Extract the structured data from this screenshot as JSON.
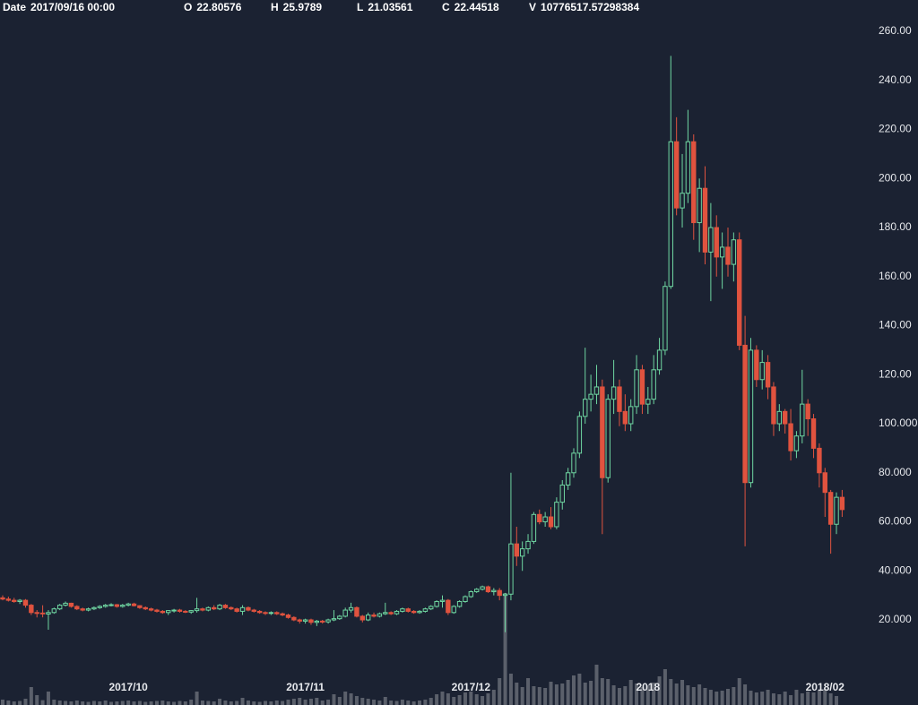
{
  "header": [
    {
      "label": "Date",
      "value": "2017/09/16 00:00"
    },
    {
      "label": "O",
      "value": 22.80576
    },
    {
      "label": "H",
      "value": 25.9789
    },
    {
      "label": "L",
      "value": 21.03561
    },
    {
      "label": "C",
      "value": 22.44518
    },
    {
      "label": "V",
      "value": "10776517.57298384"
    }
  ],
  "chart_data": {
    "type": "candlestick",
    "up_color": "#6fd6a1",
    "down_color": "#e0533f",
    "volume_color": "#5b606b",
    "ylim": [
      -14.7,
      272.8
    ],
    "yticks": [
      {
        "value": 260,
        "label": "260.00"
      },
      {
        "value": 240,
        "label": "240.00"
      },
      {
        "value": 220,
        "label": "220.00"
      },
      {
        "value": 200,
        "label": "200.00"
      },
      {
        "value": 180,
        "label": "180.00"
      },
      {
        "value": 160,
        "label": "160.00"
      },
      {
        "value": 140,
        "label": "140.00"
      },
      {
        "value": 120,
        "label": "120.00"
      },
      {
        "value": 100,
        "label": "100.000"
      },
      {
        "value": 80,
        "label": "80.000"
      },
      {
        "value": 60,
        "label": "60.000"
      },
      {
        "value": 40,
        "label": "40.000"
      },
      {
        "value": 20,
        "label": "20.000"
      }
    ],
    "categories": [
      null,
      null,
      null,
      null,
      null,
      null,
      null,
      null,
      null,
      null,
      null,
      null,
      null,
      null,
      null,
      null,
      null,
      null,
      null,
      null,
      null,
      null,
      "2017/10",
      null,
      null,
      null,
      null,
      null,
      null,
      null,
      null,
      null,
      null,
      null,
      null,
      null,
      null,
      null,
      null,
      null,
      null,
      null,
      null,
      null,
      null,
      null,
      null,
      null,
      null,
      null,
      null,
      null,
      null,
      "2017/11",
      null,
      null,
      null,
      null,
      null,
      null,
      null,
      null,
      null,
      null,
      null,
      null,
      null,
      null,
      null,
      null,
      null,
      null,
      null,
      null,
      null,
      null,
      null,
      null,
      null,
      null,
      null,
      null,
      "2017/12",
      null,
      null,
      null,
      null,
      null,
      null,
      null,
      null,
      null,
      null,
      null,
      null,
      null,
      null,
      null,
      null,
      null,
      null,
      null,
      null,
      null,
      null,
      null,
      null,
      null,
      null,
      null,
      null,
      null,
      null,
      "2018",
      null,
      null,
      null,
      null,
      null,
      null,
      null,
      null,
      null,
      null,
      null,
      null,
      null,
      null,
      null,
      null,
      null,
      null,
      null,
      null,
      null,
      null,
      null,
      null,
      null,
      null,
      null,
      null,
      null,
      null,
      "2018/02",
      null,
      null,
      null
    ],
    "values": [
      [
        29,
        30,
        28,
        28.5
      ],
      [
        28.5,
        29.5,
        27.5,
        28
      ],
      [
        28,
        29,
        27,
        27.5
      ],
      [
        27.5,
        28.5,
        26.5,
        28
      ],
      [
        28,
        28.5,
        25,
        26
      ],
      [
        26,
        26.5,
        22,
        23
      ],
      [
        23,
        24,
        21,
        22.8
      ],
      [
        22.81,
        25.98,
        21.04,
        22.45
      ],
      [
        22.4,
        24,
        16,
        23
      ],
      [
        23,
        25,
        22.5,
        24.5
      ],
      [
        24.5,
        26.5,
        24,
        26
      ],
      [
        26,
        27.5,
        25.5,
        26.8
      ],
      [
        26.8,
        27,
        25,
        25.5
      ],
      [
        25.5,
        26,
        24,
        24.5
      ],
      [
        24.5,
        25,
        23.5,
        24
      ],
      [
        24,
        25,
        23.5,
        24.5
      ],
      [
        24.5,
        25.5,
        24,
        25
      ],
      [
        25,
        26,
        24.5,
        25.5
      ],
      [
        25.5,
        26.5,
        25,
        26
      ],
      [
        26,
        26.8,
        25.5,
        26.2
      ],
      [
        26.2,
        26.5,
        25,
        25.5
      ],
      [
        25.5,
        26.5,
        25,
        26
      ],
      [
        26,
        27,
        25.5,
        26.5
      ],
      [
        26.5,
        27,
        25.5,
        25.8
      ],
      [
        25.8,
        26,
        24.5,
        25
      ],
      [
        25,
        25.5,
        24,
        24.5
      ],
      [
        24.5,
        25,
        23.5,
        24
      ],
      [
        24,
        24.5,
        23,
        23.5
      ],
      [
        23.5,
        24,
        22.5,
        23
      ],
      [
        23,
        24,
        22,
        23.8
      ],
      [
        23.8,
        24.5,
        23,
        24
      ],
      [
        24,
        24.5,
        23,
        23.5
      ],
      [
        23.5,
        24,
        22.8,
        23.2
      ],
      [
        23.2,
        24,
        22.5,
        23.8
      ],
      [
        23.8,
        29,
        23,
        24.5
      ],
      [
        24.5,
        25,
        23.5,
        24
      ],
      [
        24,
        25.5,
        23.5,
        25
      ],
      [
        25,
        26,
        24,
        24.5
      ],
      [
        24.5,
        26.5,
        24,
        26
      ],
      [
        26,
        26.5,
        24.5,
        25
      ],
      [
        25,
        25.5,
        24,
        24.5
      ],
      [
        24.5,
        25,
        23,
        23.5
      ],
      [
        23.5,
        26,
        22,
        25
      ],
      [
        25,
        25.5,
        23.5,
        24
      ],
      [
        24,
        24.5,
        23,
        23.5
      ],
      [
        23.5,
        24,
        22.5,
        23
      ],
      [
        23,
        23.5,
        22,
        22.8
      ],
      [
        22.8,
        23.5,
        22,
        23
      ],
      [
        23,
        23.5,
        22,
        22.5
      ],
      [
        22.5,
        23,
        21.5,
        22
      ],
      [
        22,
        22.5,
        20.5,
        21
      ],
      [
        21,
        21.5,
        19.5,
        20
      ],
      [
        20,
        20.5,
        18.5,
        19.5
      ],
      [
        19.5,
        20.5,
        18.5,
        20
      ],
      [
        20,
        20.5,
        18,
        19
      ],
      [
        19,
        20,
        17.5,
        19.5
      ],
      [
        19.5,
        20,
        18.5,
        19.2
      ],
      [
        19.2,
        20.5,
        18.5,
        20
      ],
      [
        20,
        24,
        19.5,
        20.5
      ],
      [
        20.5,
        22,
        20,
        21.5
      ],
      [
        21.5,
        25,
        21,
        24
      ],
      [
        24,
        27,
        23,
        25
      ],
      [
        25,
        25.5,
        21,
        21.5
      ],
      [
        21.5,
        22,
        19,
        20
      ],
      [
        20,
        23,
        19.5,
        22
      ],
      [
        22,
        23,
        21,
        21.5
      ],
      [
        21.5,
        23,
        21,
        22.5
      ],
      [
        22.5,
        27,
        22,
        23
      ],
      [
        23,
        23.5,
        22,
        22.5
      ],
      [
        22.5,
        24,
        22,
        23.5
      ],
      [
        23.5,
        25,
        23,
        24.5
      ],
      [
        24.5,
        25,
        23,
        23.5
      ],
      [
        23.5,
        24,
        22.5,
        23
      ],
      [
        23,
        24,
        22.5,
        23.5
      ],
      [
        23.5,
        25,
        23,
        24.5
      ],
      [
        24.5,
        26,
        24,
        25.5
      ],
      [
        25.5,
        28,
        25,
        27.5
      ],
      [
        27.5,
        30,
        25,
        28
      ],
      [
        28,
        28.5,
        22,
        23
      ],
      [
        23,
        26,
        22.5,
        25.5
      ],
      [
        25.5,
        28,
        25,
        27.5
      ],
      [
        27.5,
        30,
        27,
        29.5
      ],
      [
        29.5,
        32,
        29,
        31.5
      ],
      [
        31.5,
        33,
        31,
        32.5
      ],
      [
        32.5,
        34,
        32,
        33.5
      ],
      [
        33.5,
        34,
        31,
        31.5
      ],
      [
        31.5,
        33,
        30,
        32
      ],
      [
        32,
        33,
        28,
        30
      ],
      [
        30,
        31,
        15,
        30.5
      ],
      [
        30.5,
        80,
        28,
        51
      ],
      [
        51,
        58,
        42,
        46
      ],
      [
        46,
        52,
        40,
        49
      ],
      [
        49,
        55,
        47,
        52
      ],
      [
        52,
        64,
        51,
        63
      ],
      [
        63,
        65,
        59,
        60
      ],
      [
        60,
        64,
        58,
        62
      ],
      [
        62,
        66,
        57,
        58
      ],
      [
        58,
        70,
        57,
        68
      ],
      [
        68,
        77,
        65,
        75
      ],
      [
        75,
        82,
        73,
        80
      ],
      [
        80,
        90,
        78,
        88
      ],
      [
        88,
        105,
        86,
        103
      ],
      [
        103,
        131,
        100,
        110
      ],
      [
        110,
        120,
        105,
        112
      ],
      [
        112,
        124,
        108,
        115
      ],
      [
        115,
        118,
        55,
        78
      ],
      [
        78,
        112,
        76,
        110
      ],
      [
        110,
        126,
        104,
        115
      ],
      [
        115,
        118,
        99,
        105
      ],
      [
        105,
        112,
        97,
        100
      ],
      [
        100,
        110,
        97,
        107
      ],
      [
        107,
        128,
        104,
        122
      ],
      [
        122,
        124,
        104,
        108
      ],
      [
        108,
        115,
        104,
        110
      ],
      [
        110,
        128,
        108,
        122
      ],
      [
        122,
        135,
        120,
        130
      ],
      [
        130,
        158,
        128,
        156
      ],
      [
        156,
        250,
        155,
        215
      ],
      [
        215,
        225,
        185,
        188
      ],
      [
        188,
        210,
        180,
        194
      ],
      [
        194,
        228,
        190,
        215
      ],
      [
        215,
        218,
        175,
        182
      ],
      [
        182,
        200,
        170,
        196
      ],
      [
        196,
        205,
        165,
        170
      ],
      [
        170,
        190,
        150,
        180
      ],
      [
        180,
        185,
        160,
        168
      ],
      [
        168,
        178,
        155,
        172
      ],
      [
        172,
        180,
        160,
        165
      ],
      [
        165,
        178,
        158,
        175
      ],
      [
        175,
        178,
        130,
        132
      ],
      [
        132,
        144,
        50,
        76
      ],
      [
        76,
        135,
        74,
        130
      ],
      [
        130,
        132,
        115,
        118
      ],
      [
        118,
        130,
        114,
        125
      ],
      [
        125,
        128,
        110,
        115
      ],
      [
        115,
        117,
        95,
        100
      ],
      [
        100,
        108,
        97,
        105
      ],
      [
        105,
        106,
        96,
        100
      ],
      [
        100,
        106,
        85,
        89
      ],
      [
        89,
        97,
        86,
        95
      ],
      [
        95,
        122,
        92,
        108
      ],
      [
        108,
        110,
        95,
        102
      ],
      [
        102,
        104,
        86,
        90
      ],
      [
        90,
        92,
        74,
        80
      ],
      [
        80,
        82,
        62,
        72
      ],
      [
        72,
        73,
        47,
        59
      ],
      [
        59,
        72,
        55,
        70
      ],
      [
        70,
        73,
        62,
        65
      ]
    ],
    "volume": [
      12000000.0,
      10000000.0,
      8000000.0,
      9000000.0,
      14000000.0,
      40000000.0,
      22000000.0,
      10780000.0,
      30000000.0,
      12000000.0,
      10000000.0,
      9000000.0,
      8000000.0,
      10000000.0,
      8000000.0,
      7000000.0,
      9000000.0,
      8000000.0,
      10000000.0,
      7000000.0,
      8000000.0,
      9000000.0,
      10000000.0,
      8000000.0,
      9000000.0,
      7000000.0,
      8000000.0,
      9000000.0,
      10000000.0,
      8000000.0,
      7000000.0,
      9000000.0,
      8000000.0,
      12000000.0,
      30000000.0,
      10000000.0,
      9000000.0,
      8000000.0,
      14000000.0,
      10000000.0,
      8000000.0,
      9000000.0,
      16000000.0,
      10000000.0,
      8000000.0,
      7000000.0,
      9000000.0,
      8000000.0,
      10000000.0,
      9000000.0,
      12000000.0,
      14000000.0,
      16000000.0,
      12000000.0,
      14000000.0,
      16000000.0,
      10000000.0,
      12000000.0,
      24000000.0,
      18000000.0,
      30000000.0,
      26000000.0,
      20000000.0,
      16000000.0,
      14000000.0,
      12000000.0,
      10000000.0,
      18000000.0,
      10000000.0,
      9000000.0,
      12000000.0,
      10000000.0,
      8000000.0,
      10000000.0,
      12000000.0,
      16000000.0,
      24000000.0,
      30000000.0,
      26000000.0,
      18000000.0,
      22000000.0,
      28000000.0,
      30000000.0,
      24000000.0,
      20000000.0,
      26000000.0,
      34000000.0,
      60000000.0,
      250000000.0,
      70000000.0,
      50000000.0,
      40000000.0,
      60000000.0,
      42000000.0,
      40000000.0,
      38000000.0,
      52000000.0,
      46000000.0,
      48000000.0,
      56000000.0,
      66000000.0,
      70000000.0,
      50000000.0,
      54000000.0,
      90000000.0,
      60000000.0,
      58000000.0,
      44000000.0,
      38000000.0,
      42000000.0,
      56000000.0,
      48000000.0,
      40000000.0,
      44000000.0,
      50000000.0,
      64000000.0,
      80000000.0,
      58000000.0,
      48000000.0,
      56000000.0,
      44000000.0,
      40000000.0,
      46000000.0,
      38000000.0,
      34000000.0,
      30000000.0,
      32000000.0,
      36000000.0,
      40000000.0,
      60000000.0,
      46000000.0,
      32000000.0,
      28000000.0,
      30000000.0,
      34000000.0,
      26000000.0,
      24000000.0,
      30000000.0,
      22000000.0,
      34000000.0,
      26000000.0,
      30000000.0,
      28000000.0,
      32000000.0,
      36000000.0,
      26000000.0,
      20000000.0
    ]
  }
}
